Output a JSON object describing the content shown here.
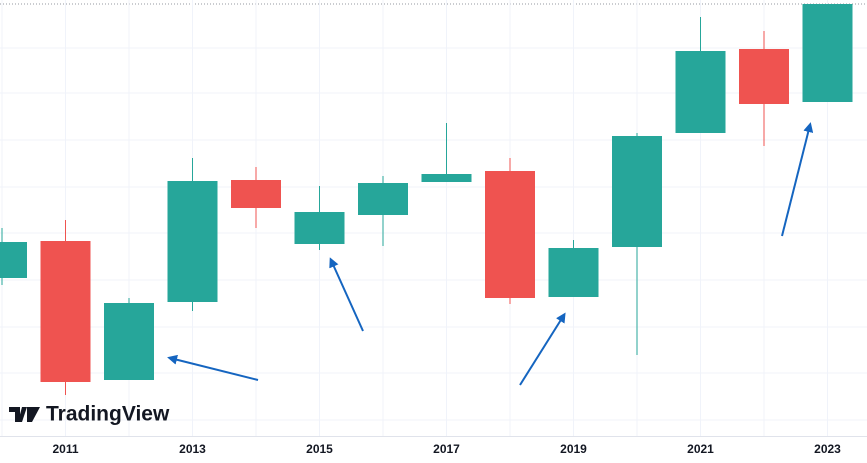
{
  "chart_data": {
    "type": "candlestick",
    "watermark": "TradingView",
    "categories": [
      null,
      "2011",
      null,
      "2013",
      null,
      "2015",
      null,
      "2017",
      null,
      "2019",
      null,
      "2021",
      null,
      "2023"
    ],
    "open": [
      158,
      195,
      56,
      134,
      256,
      192,
      221,
      254,
      265,
      139,
      189,
      303,
      387,
      334
    ],
    "close": [
      194,
      54,
      133,
      255,
      228,
      224,
      253,
      262,
      138,
      188,
      300,
      385,
      332,
      432
    ],
    "high": [
      208,
      216,
      138,
      278,
      269,
      250,
      260,
      313,
      278,
      196,
      303,
      419,
      405,
      432
    ],
    "low": [
      151,
      41,
      56,
      125,
      208,
      186,
      190,
      254,
      132,
      139,
      81,
      303,
      290,
      334
    ],
    "up_color": "#26a69a",
    "down_color": "#ef5350",
    "ylim": [
      0,
      436
    ],
    "yticks": [
      16,
      63,
      109,
      156,
      203,
      249,
      296,
      343,
      388
    ],
    "grid": true
  }
}
